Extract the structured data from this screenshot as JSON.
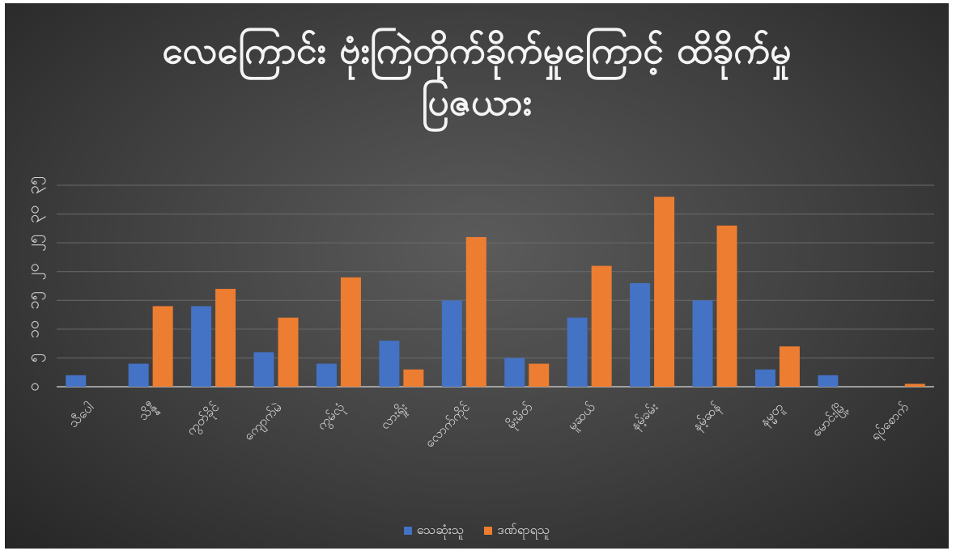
{
  "chart_data": {
    "type": "bar",
    "title_line1": "လေကြောင်း ဗုံးကြဲတိုက်ခိုက်မှုကြောင့် ထိခိုက်မှု",
    "title_line2": "ပြဇယား",
    "categories": [
      "သီပေါ",
      "သိန္နီ",
      "ကွတ်ခိုင်",
      "ကျောက်မဲ",
      "ကွမ်လုံ",
      "လားရှိုး",
      "လောက်ကိုင်",
      "မိုးမိတ်",
      "မူဆယ်",
      "နမ့်ခမ်း",
      "နမ့်ဆန်",
      "နမ္မတူ",
      "မောင်းမြို့",
      "ရပ်စောက်"
    ],
    "series": [
      {
        "name": "သေဆုံးသူ",
        "color": "#4472c4",
        "values": [
          2,
          4,
          14,
          6,
          4,
          8,
          15,
          5,
          12,
          18,
          15,
          3,
          2,
          0
        ]
      },
      {
        "name": "ဒဏ်ရာရသူ",
        "color": "#ed7d31",
        "values": [
          0,
          14,
          17,
          12,
          19,
          3,
          26,
          4,
          21,
          33,
          28,
          7,
          0,
          0.5
        ]
      }
    ],
    "y_ticks": [
      "၀",
      "၅",
      "၁၀",
      "၁၅",
      "၂၀",
      "၂၅",
      "၃၀",
      "၃၅"
    ],
    "ylim": [
      0,
      35
    ],
    "grid": true,
    "legend_position": "bottom"
  }
}
